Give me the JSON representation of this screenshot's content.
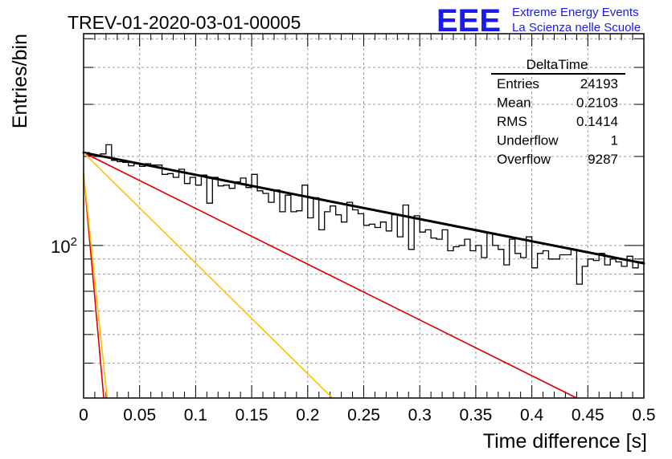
{
  "title": "TREV-01-2020-03-01-00005",
  "logo": {
    "text": "EEE",
    "line1": "Extreme Energy Events",
    "line2": "La Scienza nelle Scuole",
    "color": "#1a1aee"
  },
  "stats": {
    "name": "DeltaTime",
    "rows": [
      {
        "label": "Entries",
        "value": "24193"
      },
      {
        "label": "Mean",
        "value": "0.2103"
      },
      {
        "label": "RMS",
        "value": "0.1414"
      },
      {
        "label": "Underflow",
        "value": "1"
      },
      {
        "label": "Overflow",
        "value": "9287"
      }
    ]
  },
  "chart_data": {
    "type": "line",
    "xlabel": "Time difference [s]",
    "ylabel": "Entries/bin",
    "xlim": [
      0,
      0.5
    ],
    "ylim": [
      30.5,
      520
    ],
    "yscale": "log",
    "grid": true,
    "xticks": [
      "0",
      "0.05",
      "0.1",
      "0.15",
      "0.2",
      "0.25",
      "0.3",
      "0.35",
      "0.4",
      "0.45",
      "0.5"
    ],
    "yticks": [
      {
        "value": 100,
        "label": "10^2"
      }
    ],
    "histogram": {
      "bin_width": 0.005,
      "values": [
        206,
        202,
        200,
        204,
        219,
        194,
        192,
        191,
        186,
        189,
        185,
        189,
        187,
        187,
        174,
        175,
        170,
        181,
        162,
        170,
        160,
        173,
        139,
        170,
        159,
        160,
        156,
        164,
        169,
        157,
        174,
        153,
        150,
        140,
        154,
        130,
        148,
        130,
        131,
        160,
        124,
        145,
        113,
        130,
        136,
        127,
        120,
        140,
        132,
        128,
        117,
        118,
        115,
        120,
        112,
        127,
        107,
        137,
        97,
        126,
        111,
        113,
        106,
        105,
        113,
        96,
        99,
        100,
        105,
        96,
        100,
        91,
        110,
        100,
        97,
        86,
        105,
        94,
        91,
        107,
        84,
        94,
        96,
        90,
        90,
        93,
        93,
        97,
        74,
        85,
        90,
        89,
        94,
        86,
        90,
        88,
        85,
        92,
        84,
        88
      ]
    },
    "series": [
      {
        "role": "total-fit",
        "color": "#000000",
        "start": 206,
        "end": 87
      },
      {
        "role": "fit-component",
        "color": "#dd0000",
        "start": 206,
        "x_at_floor": 0.44
      },
      {
        "role": "fit-component",
        "color": "#ffc000",
        "start": 206,
        "x_at_floor": 0.222
      },
      {
        "role": "fit-component",
        "color": "#dd0000",
        "start": 176,
        "x_at_floor": 0.018
      },
      {
        "role": "fit-component",
        "color": "#ffc000",
        "start": 176,
        "x_at_floor": 0.021
      }
    ]
  }
}
